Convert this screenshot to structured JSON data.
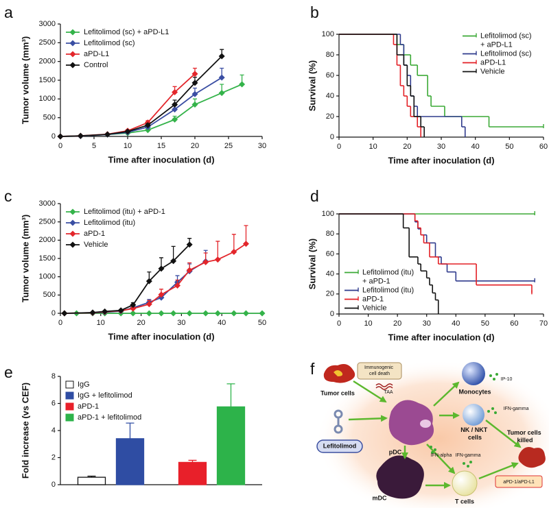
{
  "chart_data": [
    {
      "panel": "a",
      "type": "line",
      "xlabel": "Time after inoculation (d)",
      "ylabel": "Tumor volume (mm³)",
      "xlim": [
        0,
        30
      ],
      "xticks": [
        0,
        5,
        10,
        15,
        20,
        25,
        30
      ],
      "ylim": [
        0,
        3000
      ],
      "yticks": [
        0,
        500,
        1000,
        1500,
        2000,
        2500,
        3000
      ],
      "legend": "upper left",
      "marker": "diamond",
      "series": [
        {
          "name": "Lefitolimod (sc) + aPD-L1",
          "color": "#34b34a",
          "x": [
            0,
            3,
            7,
            10,
            13,
            17,
            20,
            24,
            27
          ],
          "values": [
            0,
            10,
            50,
            90,
            170,
            450,
            850,
            1160,
            1390
          ],
          "errors": [
            0,
            5,
            10,
            20,
            40,
            90,
            150,
            230,
            250
          ]
        },
        {
          "name": "Lefitolimod (sc)",
          "color": "#3a4ea3",
          "x": [
            0,
            3,
            7,
            10,
            13,
            17,
            20,
            24
          ],
          "values": [
            0,
            10,
            50,
            110,
            250,
            720,
            1130,
            1570
          ],
          "errors": [
            0,
            5,
            10,
            20,
            40,
            100,
            160,
            250
          ]
        },
        {
          "name": "aPD-L1",
          "color": "#e3262b",
          "x": [
            0,
            3,
            7,
            10,
            13,
            17,
            20
          ],
          "values": [
            0,
            15,
            60,
            150,
            370,
            1180,
            1670
          ],
          "errors": [
            0,
            5,
            10,
            30,
            50,
            150,
            150
          ]
        },
        {
          "name": "Control",
          "color": "#111111",
          "x": [
            0,
            3,
            7,
            10,
            13,
            17,
            20,
            24
          ],
          "values": [
            0,
            15,
            55,
            130,
            300,
            850,
            1430,
            2140
          ],
          "errors": [
            0,
            5,
            10,
            20,
            40,
            120,
            150,
            180
          ]
        }
      ]
    },
    {
      "panel": "b",
      "type": "step",
      "xlabel": "Time after inoculation (d)",
      "ylabel": "Survival (%)",
      "xlim": [
        0,
        60
      ],
      "xticks": [
        0,
        10,
        20,
        30,
        40,
        50,
        60
      ],
      "ylim": [
        0,
        100
      ],
      "yticks": [
        0,
        20,
        40,
        60,
        80,
        100
      ],
      "legend": "upper right",
      "series": [
        {
          "name": "Lefitolimod (sc) + aPD-L1",
          "color": "#3aa935",
          "x": [
            0,
            17,
            19,
            21,
            23,
            26,
            27,
            31,
            44,
            60
          ],
          "values": [
            100,
            90,
            80,
            70,
            60,
            40,
            30,
            20,
            10,
            10
          ]
        },
        {
          "name": "Lefitolimod (sc)",
          "color": "#2e3a8c",
          "x": [
            0,
            18,
            19,
            20,
            21,
            22,
            23,
            36,
            37
          ],
          "values": [
            100,
            90,
            70,
            60,
            40,
            30,
            20,
            10,
            0
          ]
        },
        {
          "name": "aPD-L1",
          "color": "#e31e24",
          "x": [
            0,
            16,
            17,
            18,
            19,
            20,
            21,
            23,
            24
          ],
          "values": [
            100,
            90,
            70,
            50,
            40,
            30,
            20,
            10,
            0
          ]
        },
        {
          "name": "Vehicle",
          "color": "#111111",
          "x": [
            0,
            17,
            19,
            20,
            21,
            22,
            24,
            25
          ],
          "values": [
            100,
            80,
            70,
            50,
            40,
            20,
            10,
            0
          ]
        }
      ]
    },
    {
      "panel": "c",
      "type": "line",
      "xlabel": "Time after inoculation (d)",
      "ylabel": "Tumor volume (mm³)",
      "xlim": [
        0,
        50
      ],
      "xticks": [
        0,
        10,
        20,
        30,
        40,
        50
      ],
      "ylim": [
        0,
        3000
      ],
      "yticks": [
        0,
        500,
        1000,
        1500,
        2000,
        2500,
        3000
      ],
      "legend": "upper left",
      "marker": "diamond",
      "series": [
        {
          "name": "Lefitolimod (itu) + aPD-1",
          "color": "#34b34a",
          "x": [
            1,
            4,
            8,
            11,
            15,
            18,
            22,
            25,
            28,
            32,
            36,
            39,
            43,
            46,
            50
          ],
          "values": [
            0,
            0,
            0,
            0,
            0,
            0,
            0,
            0,
            0,
            0,
            0,
            0,
            0,
            0,
            0
          ]
        },
        {
          "name": "Lefitolimod (itu)",
          "color": "#3a4ea3",
          "x": [
            1,
            8,
            11,
            15,
            18,
            22,
            25,
            29,
            32,
            36
          ],
          "values": [
            0,
            10,
            30,
            60,
            150,
            300,
            430,
            850,
            1150,
            1420
          ],
          "errors": [
            0,
            5,
            10,
            20,
            40,
            80,
            100,
            180,
            200,
            300
          ]
        },
        {
          "name": "aPD-1",
          "color": "#e3262b",
          "x": [
            1,
            8,
            11,
            15,
            18,
            22,
            25,
            29,
            32,
            36,
            39,
            43,
            46
          ],
          "values": [
            0,
            15,
            40,
            70,
            130,
            250,
            510,
            760,
            1180,
            1400,
            1470,
            1680,
            1900
          ],
          "errors": [
            0,
            5,
            10,
            20,
            40,
            100,
            150,
            150,
            200,
            250,
            500,
            480,
            500
          ]
        },
        {
          "name": "Vehicle",
          "color": "#111111",
          "x": [
            1,
            8,
            11,
            15,
            18,
            22,
            25,
            28,
            32
          ],
          "values": [
            0,
            20,
            50,
            80,
            230,
            880,
            1220,
            1430,
            1880
          ],
          "errors": [
            0,
            5,
            10,
            20,
            60,
            250,
            300,
            400,
            170
          ]
        }
      ]
    },
    {
      "panel": "d",
      "type": "step",
      "xlabel": "Time after inoculation (d)",
      "ylabel": "Survival (%)",
      "xlim": [
        0,
        70
      ],
      "xticks": [
        0,
        10,
        20,
        30,
        40,
        50,
        60,
        70
      ],
      "ylim": [
        0,
        100
      ],
      "yticks": [
        0,
        20,
        40,
        60,
        80,
        100
      ],
      "legend": "lower left",
      "series": [
        {
          "name": "Lefitolimod (itu) + aPD-1",
          "color": "#3aa935",
          "x": [
            0,
            67
          ],
          "values": [
            100,
            100
          ]
        },
        {
          "name": "Lefitolimod (itu)",
          "color": "#2e3a8c",
          "x": [
            0,
            26,
            27,
            28,
            30,
            33,
            35,
            37,
            40,
            67
          ],
          "values": [
            100,
            92,
            85,
            79,
            71,
            57,
            50,
            42,
            33,
            33
          ]
        },
        {
          "name": "aPD-1",
          "color": "#e31e24",
          "x": [
            0,
            26,
            27,
            28,
            29,
            31,
            34,
            47,
            66
          ],
          "values": [
            100,
            93,
            86,
            79,
            71,
            57,
            50,
            29,
            21
          ]
        },
        {
          "name": "Vehicle",
          "color": "#111111",
          "x": [
            0,
            22,
            24,
            27,
            28,
            30,
            31,
            32,
            33,
            34
          ],
          "values": [
            100,
            86,
            57,
            50,
            43,
            36,
            29,
            21,
            14,
            0
          ]
        }
      ]
    },
    {
      "panel": "e",
      "type": "bar",
      "ylabel": "Fold increase (vs CEF)",
      "ylim": [
        0,
        8
      ],
      "yticks": [
        0,
        2,
        4,
        6,
        8
      ],
      "legend": "upper left",
      "categories": [
        null,
        null
      ],
      "series": [
        {
          "name": "IgG",
          "color": "#ffffff",
          "edgecolor": "#111111",
          "values": [
            0.55,
            null
          ],
          "errors": [
            0.08,
            null
          ]
        },
        {
          "name": "IgG + lefitolimod",
          "color": "#2f4da3",
          "values": [
            3.4,
            null
          ],
          "errors": [
            1.15,
            null
          ]
        },
        {
          "name": "aPD-1",
          "color": "#e8202a",
          "values": [
            null,
            1.65
          ],
          "errors": [
            null,
            0.15
          ]
        },
        {
          "name": "aPD-1 + lefitolimod",
          "color": "#2db34a",
          "values": [
            null,
            5.75
          ],
          "errors": [
            null,
            1.7
          ]
        }
      ]
    }
  ],
  "diagram": {
    "panel": "f",
    "nodes": [
      {
        "label": "Tumor cells"
      },
      {
        "label": "Immunogenic cell death"
      },
      {
        "label": "TAA"
      },
      {
        "label": "pDC"
      },
      {
        "label": "Lefitolimod"
      },
      {
        "label": "IFN-alpha"
      },
      {
        "label": "Monocytes"
      },
      {
        "label": "IP-10"
      },
      {
        "label": "IFN-gamma"
      },
      {
        "label": "NK / NKT cells"
      },
      {
        "label": "Tumor cells killed"
      },
      {
        "label": "IFN-gamma"
      },
      {
        "label": "mDC"
      },
      {
        "label": "T cells"
      },
      {
        "label": "aPD-1/aPD-L1"
      }
    ]
  }
}
